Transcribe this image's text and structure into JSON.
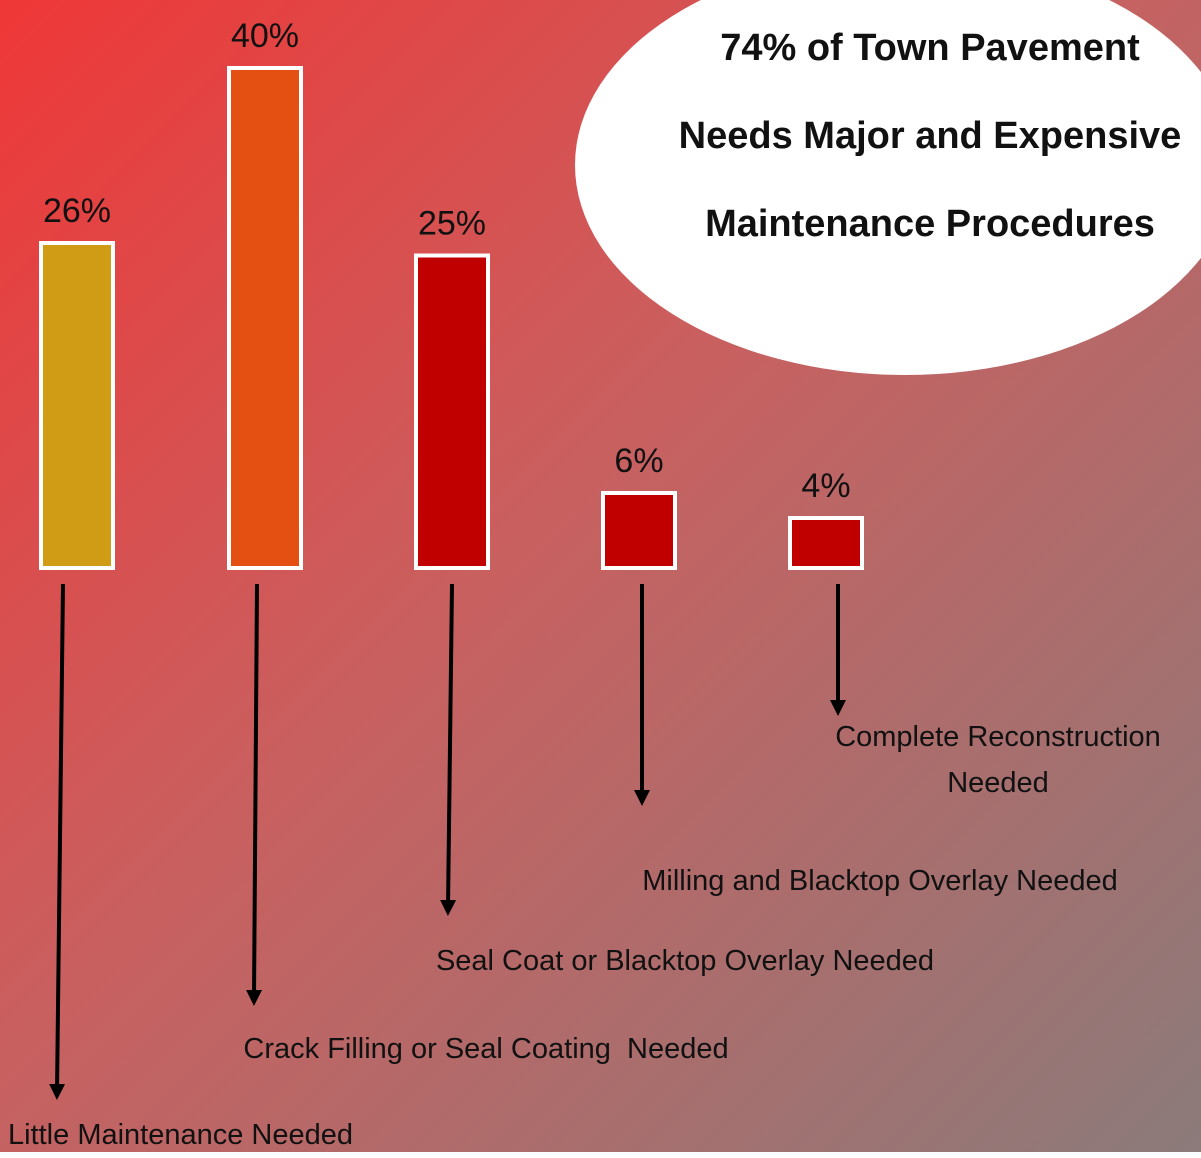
{
  "chart_data": {
    "type": "bar",
    "annotation": [
      "74% of Town Pavement",
      "Needs Major and Expensive",
      "Maintenance Procedures"
    ],
    "categories": [
      "Little Maintenance Needed",
      "Crack Filling or Seal Coating  Needed",
      "Seal Coat or Blacktop Overlay Needed",
      "Milling and Blacktop Overlay Needed",
      "Complete Reconstruction Needed"
    ],
    "values": [
      26,
      40,
      25,
      6,
      4
    ],
    "value_labels": [
      "26%",
      "40%",
      "25%",
      "6%",
      "4%"
    ],
    "colors": [
      "#d09c16",
      "#e35012",
      "#c00000",
      "#c00000",
      "#c00000"
    ],
    "ylim": [
      0,
      40
    ]
  }
}
